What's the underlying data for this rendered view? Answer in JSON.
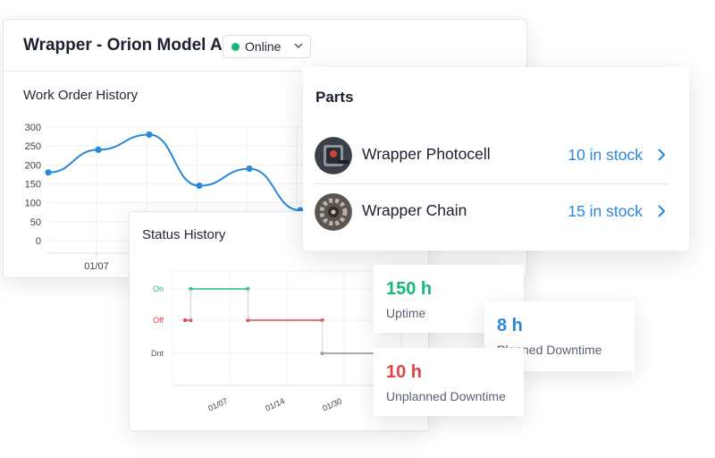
{
  "machine": {
    "title": "Wrapper - Orion Model A",
    "status": {
      "label": "Online",
      "color": "#17b978",
      "icon": "chevron-down-icon"
    }
  },
  "work_order_history": {
    "title": "Work Order History"
  },
  "parts": {
    "title": "Parts",
    "items": [
      {
        "name": "Wrapper Photocell",
        "stock": "10 in stock",
        "icon": "chevron-right-icon"
      },
      {
        "name": "Wrapper Chain",
        "stock": "15 in stock",
        "icon": "chevron-right-icon"
      }
    ]
  },
  "status_history": {
    "title": "Status History"
  },
  "stats": {
    "uptime": {
      "value": "150 h",
      "label": "Uptime",
      "color": "#17b978"
    },
    "planned": {
      "value": "8 h",
      "label": "Planned Downtime",
      "color": "#2a88d8"
    },
    "unplanned": {
      "value": "10 h",
      "label": "Unplanned Downtime",
      "color": "#e04444"
    }
  },
  "chart_data": [
    {
      "type": "line",
      "title": "Work Order History",
      "y_ticks": [
        "300",
        "250",
        "200",
        "150",
        "100",
        "50",
        "0"
      ],
      "ylim": [
        0,
        300
      ],
      "x_ticks": [
        "01/07"
      ],
      "values": [
        180,
        240,
        280,
        145,
        190,
        80
      ],
      "series_color": "#2a88d8",
      "grid": true
    },
    {
      "type": "line",
      "title": "Status History",
      "y_categories": [
        "On",
        "Off",
        "Dnt"
      ],
      "x_ticks": [
        "01/07",
        "01/14",
        "01/30"
      ],
      "segments": [
        {
          "state": "On",
          "from": 0.1,
          "to": 1.1,
          "color": "#21b98a"
        },
        {
          "state": "Off",
          "from": 0.0,
          "to": 0.1,
          "color": "#e04444"
        },
        {
          "state": "Off",
          "from": 1.1,
          "to": 2.4,
          "color": "#e04444"
        },
        {
          "state": "Dnt",
          "from": 2.4,
          "to": 3.6,
          "color": "#8a8f99"
        }
      ],
      "grid": true
    }
  ]
}
